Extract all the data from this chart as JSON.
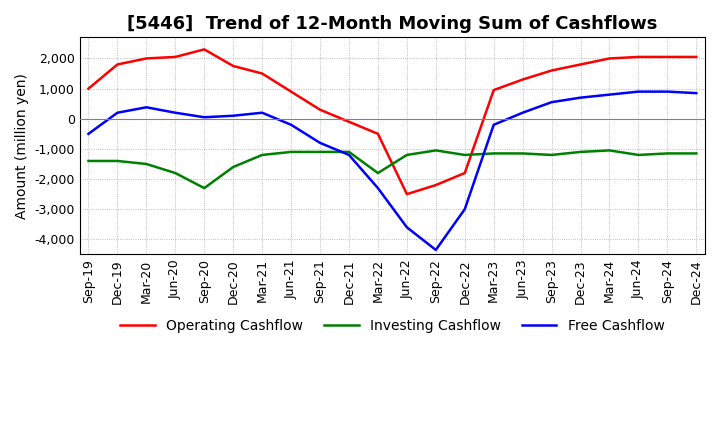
{
  "title": "[5446]  Trend of 12-Month Moving Sum of Cashflows",
  "ylabel": "Amount (million yen)",
  "xlabels": [
    "Sep-19",
    "Dec-19",
    "Mar-20",
    "Jun-20",
    "Sep-20",
    "Dec-20",
    "Mar-21",
    "Jun-21",
    "Sep-21",
    "Dec-21",
    "Mar-22",
    "Jun-22",
    "Sep-22",
    "Dec-22",
    "Mar-23",
    "Jun-23",
    "Sep-23",
    "Dec-23",
    "Mar-24",
    "Jun-24",
    "Sep-24",
    "Dec-24"
  ],
  "operating": [
    1000,
    1800,
    2000,
    2050,
    2300,
    1750,
    1500,
    900,
    300,
    -100,
    -500,
    -2500,
    -2200,
    -1800,
    950,
    1300,
    1600,
    1800,
    2000,
    2050,
    2050,
    2050
  ],
  "investing": [
    -1400,
    -1400,
    -1500,
    -1800,
    -2300,
    -1600,
    -1200,
    -1100,
    -1100,
    -1100,
    -1800,
    -1200,
    -1050,
    -1200,
    -1150,
    -1150,
    -1200,
    -1100,
    -1050,
    -1200,
    -1150,
    -1150
  ],
  "free": [
    -500,
    200,
    380,
    200,
    50,
    100,
    200,
    -200,
    -800,
    -1200,
    -2300,
    -3600,
    -4350,
    -3000,
    -200,
    200,
    550,
    700,
    800,
    900,
    900,
    850
  ],
  "operating_color": "#ff0000",
  "investing_color": "#008000",
  "free_color": "#0000ff",
  "ylim": [
    -4500,
    2700
  ],
  "yticks": [
    -4000,
    -3000,
    -2000,
    -1000,
    0,
    1000,
    2000
  ],
  "background_color": "#ffffff",
  "grid_color": "#aaaaaa",
  "title_fontsize": 13,
  "label_fontsize": 10,
  "tick_fontsize": 9,
  "line_width": 1.8
}
